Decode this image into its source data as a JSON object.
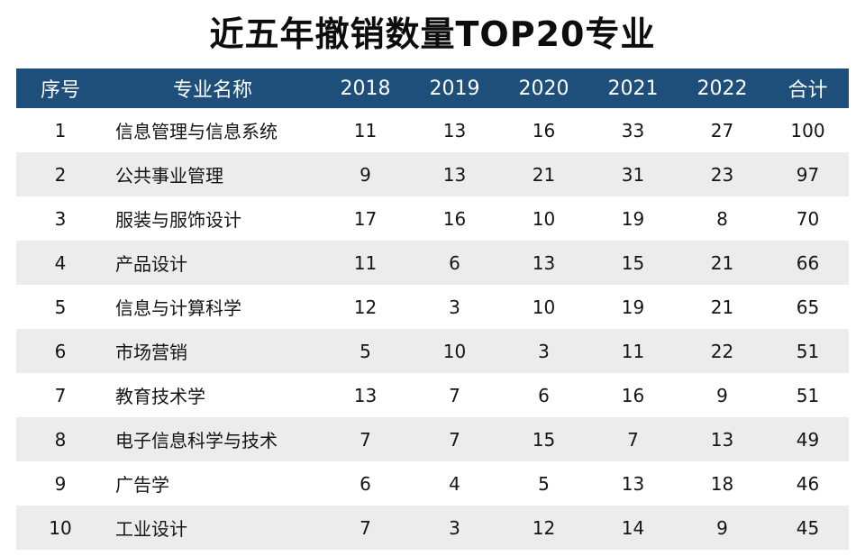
{
  "title": "近五年撤销数量TOP20专业",
  "table": {
    "headers": [
      "序号",
      "专业名称",
      "2018",
      "2019",
      "2020",
      "2021",
      "2022",
      "合计"
    ],
    "rows": [
      [
        "1",
        "信息管理与信息系统",
        "11",
        "13",
        "16",
        "33",
        "27",
        "100"
      ],
      [
        "2",
        "公共事业管理",
        "9",
        "13",
        "21",
        "31",
        "23",
        "97"
      ],
      [
        "3",
        "服装与服饰设计",
        "17",
        "16",
        "10",
        "19",
        "8",
        "70"
      ],
      [
        "4",
        "产品设计",
        "11",
        "6",
        "13",
        "15",
        "21",
        "66"
      ],
      [
        "5",
        "信息与计算科学",
        "12",
        "3",
        "10",
        "19",
        "21",
        "65"
      ],
      [
        "6",
        "市场营销",
        "5",
        "10",
        "3",
        "11",
        "22",
        "51"
      ],
      [
        "7",
        "教育技术学",
        "13",
        "7",
        "6",
        "16",
        "9",
        "51"
      ],
      [
        "8",
        "电子信息科学与技术",
        "7",
        "7",
        "15",
        "7",
        "13",
        "49"
      ],
      [
        "9",
        "广告学",
        "6",
        "4",
        "5",
        "13",
        "18",
        "46"
      ],
      [
        "10",
        "工业设计",
        "7",
        "3",
        "12",
        "14",
        "9",
        "45"
      ]
    ]
  },
  "colors": {
    "header_bg": "#1d4f7a",
    "header_text": "#ffffff",
    "stripe": "#ececec"
  }
}
